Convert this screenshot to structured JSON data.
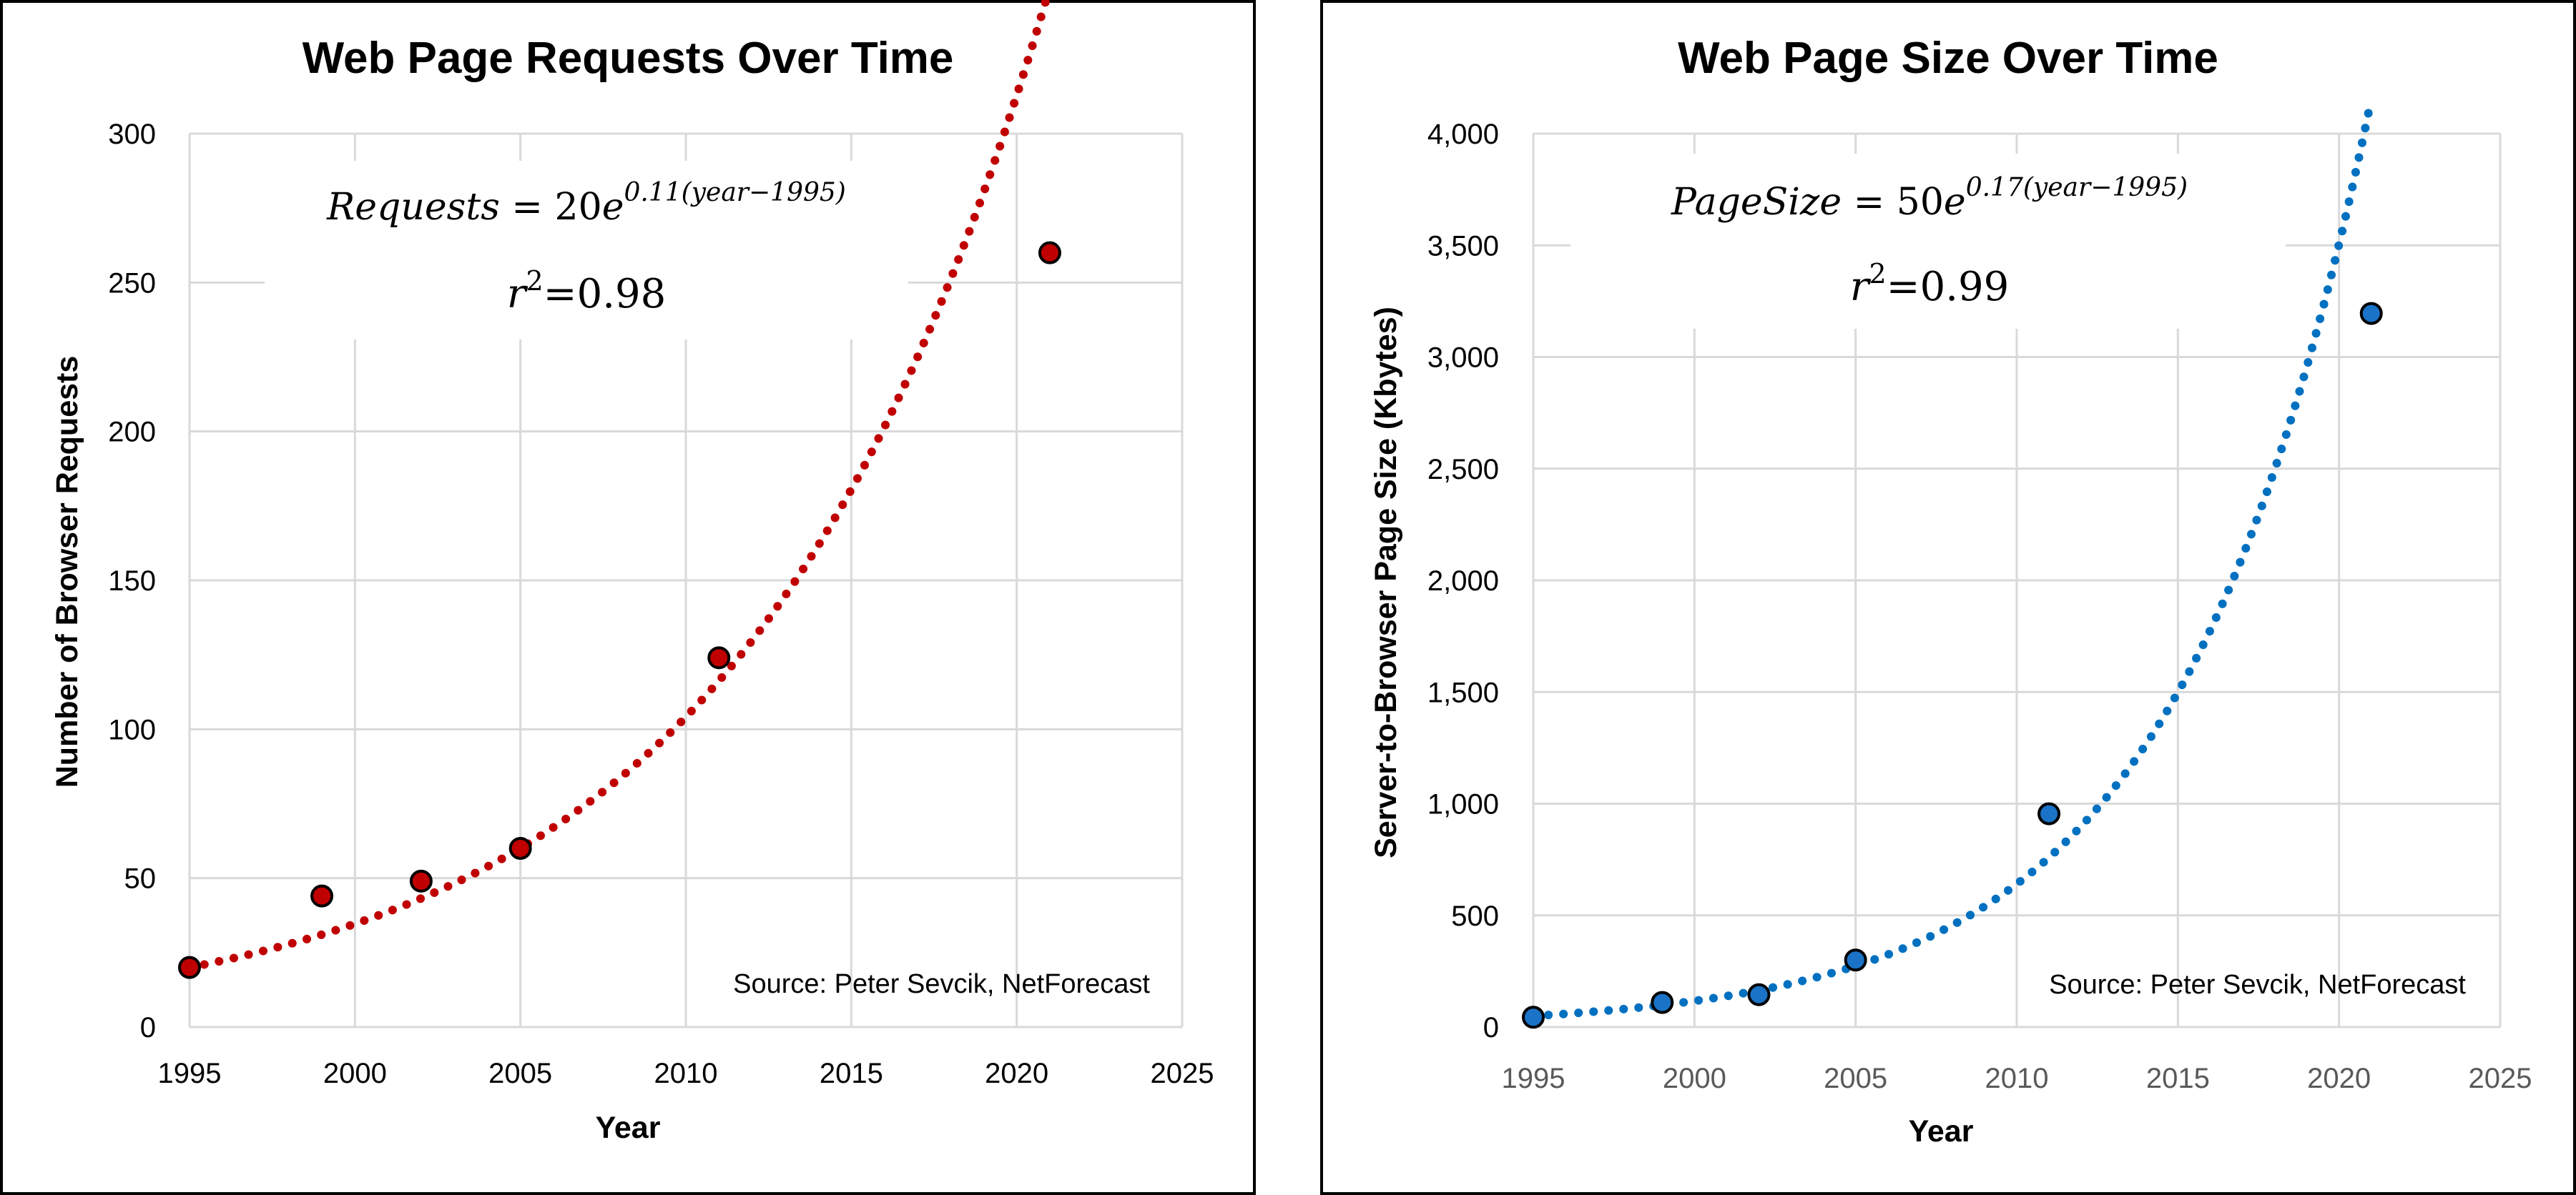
{
  "chart_data": [
    {
      "type": "scatter",
      "title": "Web Page Requests Over Time",
      "xlabel": "Year",
      "ylabel": "Number of Browser Requests",
      "xlim": [
        1995,
        2025
      ],
      "ylim": [
        0,
        300
      ],
      "x_ticks": [
        1995,
        2000,
        2005,
        2010,
        2015,
        2020,
        2025
      ],
      "y_ticks": [
        0,
        50,
        100,
        150,
        200,
        250,
        300
      ],
      "y_tick_labels": [
        "0",
        "50",
        "100",
        "150",
        "200",
        "250",
        "300"
      ],
      "grid": true,
      "series": [
        {
          "x": [
            1995,
            1999,
            2002,
            2005,
            2011,
            2021
          ],
          "y": [
            20,
            44,
            49,
            60,
            124,
            260
          ]
        }
      ],
      "trendline": {
        "kind": "exponential",
        "a": 20,
        "b": 0.11,
        "x0": 1995,
        "x_end": 2021,
        "style": "dotted"
      },
      "equation": {
        "lhs": "Requests",
        "eq": " = ",
        "coef": "20",
        "base": "e",
        "exponent": "0.11(year−1995)"
      },
      "r2": {
        "sym": "r",
        "sup": "2",
        "value": "=0.98"
      },
      "source": "Source: Peter Sevcik, NetForecast",
      "colors": {
        "marker": "#c00000",
        "trend": "#c00000",
        "outline": "#000000"
      }
    },
    {
      "type": "scatter",
      "title": "Web Page Size Over Time",
      "xlabel": "Year",
      "ylabel": "Server-to-Browser Page Size (Kbytes)",
      "xlim": [
        1995,
        2025
      ],
      "ylim": [
        0,
        4000
      ],
      "x_ticks": [
        1995,
        2000,
        2005,
        2010,
        2015,
        2020,
        2025
      ],
      "y_ticks": [
        0,
        500,
        1000,
        1500,
        2000,
        2500,
        3000,
        3500,
        4000
      ],
      "y_tick_labels": [
        "0",
        "500",
        "1,000",
        "1,500",
        "2,000",
        "2,500",
        "3,000",
        "3,500",
        "4,000"
      ],
      "grid": true,
      "series": [
        {
          "x": [
            1995,
            1999,
            2002,
            2005,
            2011,
            2021
          ],
          "y": [
            44,
            110,
            145,
            300,
            955,
            3195
          ]
        }
      ],
      "trendline": {
        "kind": "exponential",
        "a": 50,
        "b": 0.17,
        "x0": 1995,
        "x_end": 2021,
        "style": "dotted"
      },
      "equation": {
        "lhs": "PageSize",
        "eq": " = ",
        "coef": "50",
        "base": "e",
        "exponent": "0.17(year−1995)"
      },
      "r2": {
        "sym": "r",
        "sup": "2",
        "value": "=0.99"
      },
      "source": "Source: Peter Sevcik, NetForecast",
      "colors": {
        "marker": "#1a73c6",
        "trend": "#0070c0",
        "outline": "#000000"
      }
    }
  ]
}
